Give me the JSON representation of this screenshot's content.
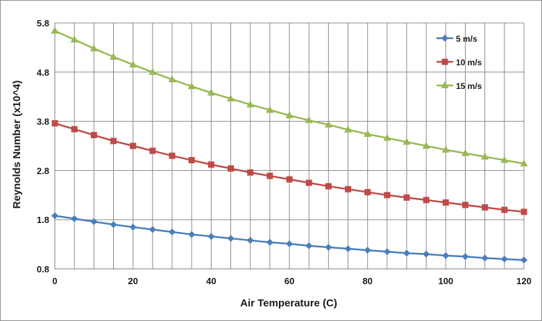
{
  "chart_data": {
    "type": "line",
    "title": "",
    "xlabel": "Air Temperature (C)",
    "ylabel": "Reynolds Number (x10^4)",
    "xlim": [
      0,
      120
    ],
    "ylim": [
      0.8,
      5.8
    ],
    "x_ticks": [
      "0",
      "20",
      "40",
      "60",
      "80",
      "100",
      "120"
    ],
    "y_ticks": [
      "0.8",
      "1.8",
      "2.8",
      "3.8",
      "4.8",
      "5.8"
    ],
    "grid": true,
    "legend_position": "top-right",
    "x": [
      0,
      5,
      10,
      15,
      20,
      25,
      30,
      35,
      40,
      45,
      50,
      55,
      60,
      65,
      70,
      75,
      80,
      85,
      90,
      95,
      100,
      105,
      110,
      115,
      120
    ],
    "series": [
      {
        "name": "5 m/s",
        "color": "#4a7ebb",
        "marker": "diamond",
        "values": [
          1.88,
          1.82,
          1.76,
          1.7,
          1.65,
          1.6,
          1.55,
          1.5,
          1.46,
          1.42,
          1.38,
          1.34,
          1.31,
          1.27,
          1.24,
          1.21,
          1.18,
          1.15,
          1.12,
          1.1,
          1.07,
          1.05,
          1.02,
          1.0,
          0.98
        ]
      },
      {
        "name": "10 m/s",
        "color": "#be4b48",
        "marker": "square",
        "values": [
          3.76,
          3.64,
          3.52,
          3.4,
          3.3,
          3.2,
          3.1,
          3.01,
          2.92,
          2.84,
          2.76,
          2.69,
          2.62,
          2.55,
          2.48,
          2.42,
          2.36,
          2.3,
          2.25,
          2.2,
          2.15,
          2.1,
          2.05,
          2.0,
          1.96
        ]
      },
      {
        "name": "15 m/s",
        "color": "#98b954",
        "marker": "triangle",
        "values": [
          5.64,
          5.46,
          5.28,
          5.11,
          4.95,
          4.8,
          4.65,
          4.51,
          4.38,
          4.26,
          4.14,
          4.03,
          3.92,
          3.82,
          3.73,
          3.63,
          3.54,
          3.46,
          3.38,
          3.3,
          3.22,
          3.15,
          3.08,
          3.01,
          2.94
        ]
      }
    ]
  }
}
